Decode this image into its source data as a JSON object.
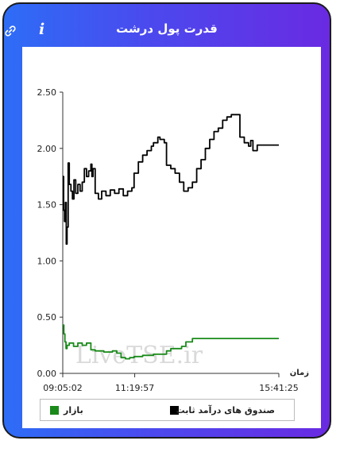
{
  "header": {
    "title": "قدرت پول درشت",
    "info_glyph": "i",
    "info_icon": "info-icon",
    "link_icon": "link-icon"
  },
  "watermark": "LiveTSE.ir",
  "colors": {
    "gradient_start": "#2d6df6",
    "gradient_end": "#6a2ae2",
    "fund": "#000000",
    "market": "#1a8a1a"
  },
  "chart_data": {
    "type": "line",
    "xlabel": "زمان",
    "ylabel": "",
    "xticks": [
      "09:05:02",
      "11:19:57",
      "15:41:25"
    ],
    "xtick_positions": [
      0,
      0.333,
      1.0
    ],
    "yticks": [
      "0.00",
      "0.50",
      "1.00",
      "1.50",
      "2.00",
      "2.50"
    ],
    "ylim": [
      0,
      2.5
    ],
    "xlim": [
      0,
      1
    ],
    "grid": false,
    "legend_position": "bottom",
    "series": [
      {
        "name": "صندوق های درآمد ثابت",
        "color": "#000000",
        "points": [
          [
            0,
            1.75
          ],
          [
            0.004,
            1.45
          ],
          [
            0.008,
            1.35
          ],
          [
            0.012,
            1.52
          ],
          [
            0.016,
            1.15
          ],
          [
            0.02,
            1.3
          ],
          [
            0.025,
            1.87
          ],
          [
            0.03,
            1.68
          ],
          [
            0.038,
            1.62
          ],
          [
            0.045,
            1.55
          ],
          [
            0.052,
            1.72
          ],
          [
            0.06,
            1.6
          ],
          [
            0.07,
            1.68
          ],
          [
            0.08,
            1.62
          ],
          [
            0.09,
            1.7
          ],
          [
            0.1,
            1.82
          ],
          [
            0.11,
            1.75
          ],
          [
            0.12,
            1.8
          ],
          [
            0.13,
            1.86
          ],
          [
            0.135,
            1.75
          ],
          [
            0.14,
            1.82
          ],
          [
            0.15,
            1.6
          ],
          [
            0.165,
            1.55
          ],
          [
            0.18,
            1.62
          ],
          [
            0.2,
            1.58
          ],
          [
            0.22,
            1.63
          ],
          [
            0.24,
            1.6
          ],
          [
            0.26,
            1.64
          ],
          [
            0.28,
            1.58
          ],
          [
            0.3,
            1.62
          ],
          [
            0.32,
            1.65
          ],
          [
            0.33,
            1.78
          ],
          [
            0.35,
            1.88
          ],
          [
            0.37,
            1.94
          ],
          [
            0.39,
            1.98
          ],
          [
            0.41,
            2.02
          ],
          [
            0.42,
            2.05
          ],
          [
            0.44,
            2.1
          ],
          [
            0.45,
            2.08
          ],
          [
            0.47,
            2.05
          ],
          [
            0.48,
            1.85
          ],
          [
            0.5,
            1.82
          ],
          [
            0.52,
            1.78
          ],
          [
            0.54,
            1.7
          ],
          [
            0.56,
            1.62
          ],
          [
            0.58,
            1.65
          ],
          [
            0.6,
            1.7
          ],
          [
            0.62,
            1.82
          ],
          [
            0.64,
            1.9
          ],
          [
            0.66,
            2.0
          ],
          [
            0.68,
            2.08
          ],
          [
            0.7,
            2.15
          ],
          [
            0.72,
            2.18
          ],
          [
            0.74,
            2.25
          ],
          [
            0.76,
            2.28
          ],
          [
            0.78,
            2.3
          ],
          [
            0.8,
            2.3
          ],
          [
            0.82,
            2.1
          ],
          [
            0.84,
            2.05
          ],
          [
            0.86,
            2.02
          ],
          [
            0.87,
            2.07
          ],
          [
            0.88,
            1.98
          ],
          [
            0.9,
            2.03
          ],
          [
            0.95,
            2.03
          ],
          [
            1.0,
            2.03
          ]
        ]
      },
      {
        "name": "بازار",
        "color": "#1a8a1a",
        "points": [
          [
            0,
            0.43
          ],
          [
            0.005,
            0.35
          ],
          [
            0.01,
            0.28
          ],
          [
            0.015,
            0.22
          ],
          [
            0.02,
            0.25
          ],
          [
            0.03,
            0.27
          ],
          [
            0.05,
            0.24
          ],
          [
            0.07,
            0.27
          ],
          [
            0.09,
            0.25
          ],
          [
            0.11,
            0.27
          ],
          [
            0.13,
            0.21
          ],
          [
            0.15,
            0.2
          ],
          [
            0.17,
            0.2
          ],
          [
            0.19,
            0.19
          ],
          [
            0.21,
            0.19
          ],
          [
            0.23,
            0.2
          ],
          [
            0.25,
            0.18
          ],
          [
            0.27,
            0.14
          ],
          [
            0.29,
            0.13
          ],
          [
            0.31,
            0.14
          ],
          [
            0.33,
            0.15
          ],
          [
            0.35,
            0.15
          ],
          [
            0.37,
            0.16
          ],
          [
            0.39,
            0.16
          ],
          [
            0.42,
            0.17
          ],
          [
            0.45,
            0.17
          ],
          [
            0.48,
            0.2
          ],
          [
            0.5,
            0.22
          ],
          [
            0.52,
            0.22
          ],
          [
            0.55,
            0.24
          ],
          [
            0.57,
            0.28
          ],
          [
            0.6,
            0.31
          ],
          [
            0.7,
            0.31
          ],
          [
            0.8,
            0.31
          ],
          [
            0.9,
            0.31
          ],
          [
            1.0,
            0.31
          ]
        ]
      }
    ]
  }
}
